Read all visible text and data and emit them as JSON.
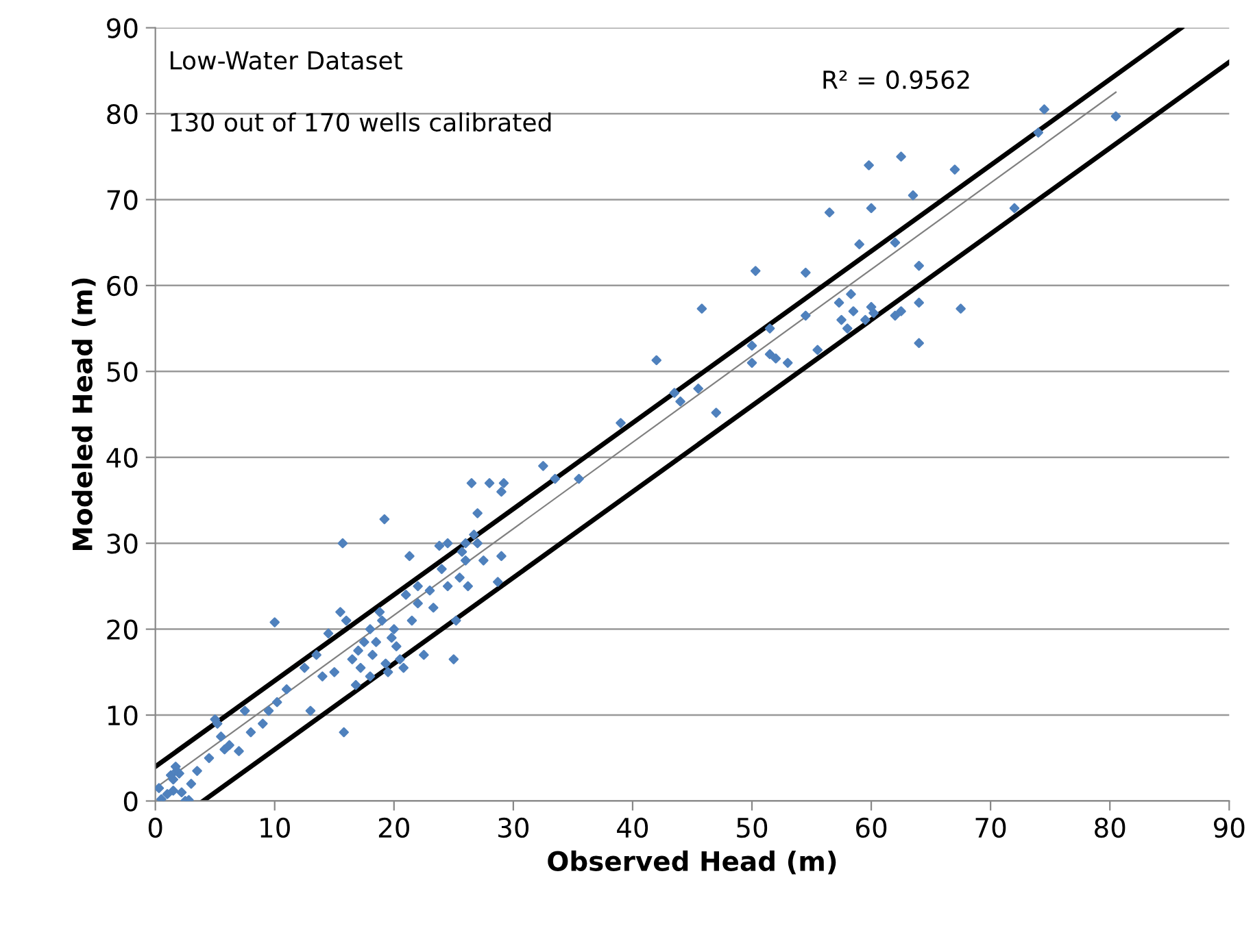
{
  "chart_data": {
    "type": "scatter",
    "xlabel": "Observed Head (m)",
    "ylabel": "Modeled Head (m)",
    "xlim": [
      0,
      90
    ],
    "ylim": [
      0,
      90
    ],
    "xticks": [
      0,
      10,
      20,
      30,
      40,
      50,
      60,
      70,
      80,
      90
    ],
    "yticks": [
      0,
      10,
      20,
      30,
      40,
      50,
      60,
      70,
      80,
      90
    ],
    "grid": "y",
    "legend": false,
    "annotations": [
      "Low-Water Dataset",
      "130 out of 170 wells calibrated",
      "R² = 0.9562"
    ],
    "series": [
      {
        "marker": "diamond",
        "color": "#4f81bd",
        "x": [
          0.3,
          0.5,
          1,
          1.3,
          1.5,
          1.7,
          1.8,
          2,
          2.2,
          1.5,
          2.5,
          2.8,
          3,
          3.5,
          4.5,
          5,
          5.2,
          5.5,
          5.8,
          6.2,
          7,
          7.5,
          8,
          9,
          9.5,
          10,
          10.2,
          11,
          12.5,
          13,
          13.5,
          14,
          14.5,
          15,
          15.5,
          15.8,
          15.7,
          16,
          16.5,
          16.8,
          17,
          17.2,
          17.5,
          18,
          18,
          18.2,
          18.5,
          18.8,
          19,
          19.2,
          19.3,
          19.5,
          19.8,
          20,
          20.2,
          20.5,
          20.8,
          21,
          21.3,
          21.5,
          22,
          22,
          22.5,
          23,
          23.3,
          23.8,
          24,
          24.5,
          24.5,
          25,
          25.2,
          25.5,
          25.7,
          26,
          26,
          26.2,
          26.5,
          26.7,
          27,
          27,
          27.5,
          28,
          28.7,
          29,
          29,
          29.2,
          32.5,
          33.5,
          35.5,
          39,
          42,
          43.5,
          44,
          45.5,
          45.8,
          47,
          50,
          50,
          50.3,
          51.5,
          51.5,
          52,
          53,
          54.5,
          54.5,
          55.5,
          56.5,
          57.3,
          57.5,
          58,
          58.3,
          58.5,
          59,
          59.5,
          59.8,
          60,
          60,
          60.2,
          62,
          62,
          62.5,
          62.5,
          63.5,
          64,
          64,
          64,
          67,
          67.5,
          72,
          74,
          74.5,
          80.5
        ],
        "values": [
          1.5,
          0.2,
          0.8,
          3,
          2.5,
          4,
          3.5,
          3.2,
          1,
          1.2,
          0,
          0.1,
          2,
          3.5,
          5,
          9.5,
          9,
          7.5,
          6,
          6.5,
          5.8,
          10.5,
          8,
          9,
          10.5,
          20.8,
          11.5,
          13,
          15.5,
          10.5,
          17,
          14.5,
          19.5,
          15,
          22,
          8,
          30,
          21,
          16.5,
          13.5,
          17.5,
          15.5,
          18.5,
          14.5,
          20,
          17,
          18.5,
          22,
          21,
          32.8,
          16,
          15,
          19,
          20,
          18,
          16.5,
          15.5,
          24,
          28.5,
          21,
          23,
          25,
          17,
          24.5,
          22.5,
          29.7,
          27,
          30,
          25,
          16.5,
          21,
          26,
          29,
          30,
          28,
          25,
          37,
          31,
          33.5,
          30,
          28,
          37,
          25.5,
          28.5,
          36,
          37,
          39,
          37.5,
          37.5,
          44,
          51.3,
          47.5,
          46.5,
          48,
          57.3,
          45.2,
          53,
          51,
          61.7,
          55,
          52,
          51.5,
          51,
          56.5,
          61.5,
          52.5,
          68.5,
          58,
          56,
          55,
          59,
          57,
          64.8,
          56,
          74,
          69,
          57.5,
          56.8,
          65,
          56.5,
          57,
          75,
          70.5,
          62.3,
          53.3,
          58,
          73.5,
          57.3,
          69,
          77.8,
          80.5,
          79.7
        ]
      },
      {
        "type": "line",
        "marker": "none",
        "color": "#808080",
        "x": [
          0,
          80.5
        ],
        "values": [
          1.5,
          82.5
        ]
      },
      {
        "type": "line",
        "marker": "none",
        "color": "#000000",
        "x": [
          0,
          86
        ],
        "values": [
          4,
          90
        ]
      },
      {
        "type": "line",
        "marker": "none",
        "color": "#000000",
        "x": [
          4,
          90
        ],
        "values": [
          0,
          86
        ]
      }
    ]
  }
}
